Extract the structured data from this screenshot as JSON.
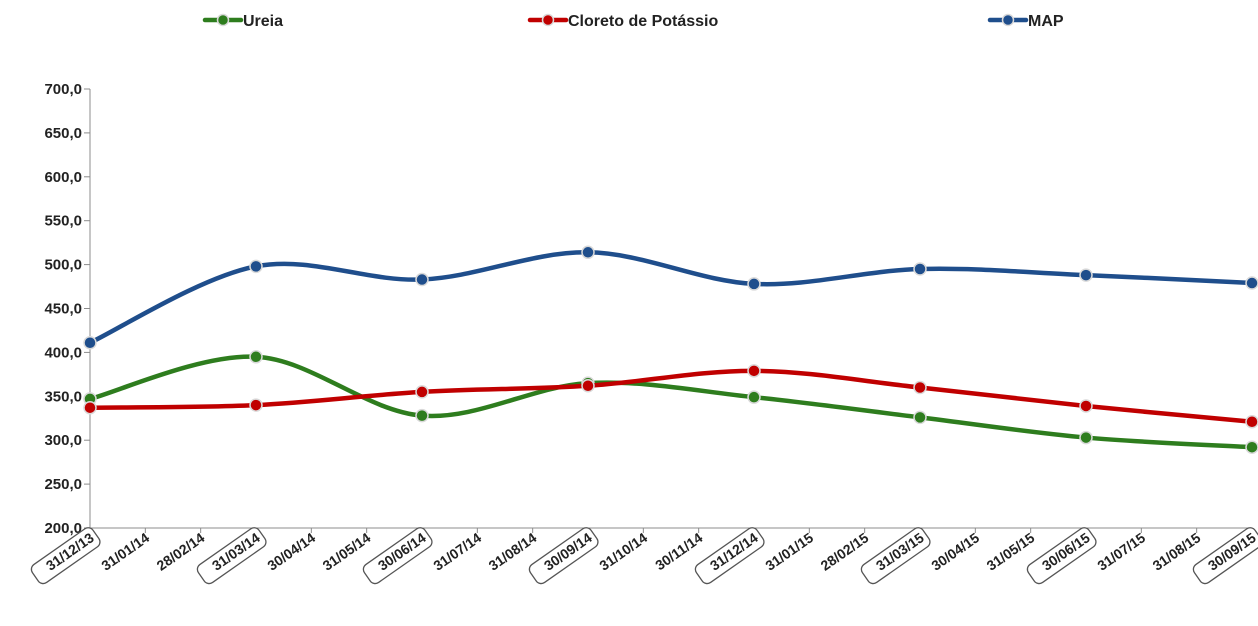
{
  "chart_data": {
    "type": "line",
    "categories": [
      "31/12/13",
      "31/01/14",
      "28/02/14",
      "31/03/14",
      "30/04/14",
      "31/05/14",
      "30/06/14",
      "31/07/14",
      "31/08/14",
      "30/09/14",
      "31/10/14",
      "30/11/14",
      "31/12/14",
      "31/01/15",
      "28/02/15",
      "31/03/15",
      "30/04/15",
      "31/05/15",
      "30/06/15",
      "31/07/15",
      "31/08/15",
      "30/09/15"
    ],
    "boxed_categories": [
      "31/12/13",
      "31/03/14",
      "30/06/14",
      "30/09/14",
      "31/12/14",
      "31/03/15",
      "30/06/15",
      "30/09/15"
    ],
    "series": [
      {
        "name": "Ureia",
        "color": "#2e7d1e",
        "x": [
          "31/12/13",
          "31/03/14",
          "30/06/14",
          "30/09/14",
          "31/12/14",
          "31/03/15",
          "30/06/15",
          "30/09/15"
        ],
        "values": [
          347,
          395,
          328,
          365,
          349,
          326,
          303,
          292
        ]
      },
      {
        "name": "Cloreto de Potássio",
        "color": "#c00000",
        "x": [
          "31/12/13",
          "31/03/14",
          "30/06/14",
          "30/09/14",
          "31/12/14",
          "31/03/15",
          "30/06/15",
          "30/09/15"
        ],
        "values": [
          337,
          340,
          355,
          362,
          379,
          360,
          339,
          321
        ]
      },
      {
        "name": "MAP",
        "color": "#1f4e8c",
        "x": [
          "31/12/13",
          "31/03/14",
          "30/06/14",
          "30/09/14",
          "31/12/14",
          "31/03/15",
          "30/06/15",
          "30/09/15"
        ],
        "values": [
          411,
          498,
          483,
          514,
          478,
          495,
          488,
          479
        ]
      }
    ],
    "y_ticks": [
      "200,0",
      "250,0",
      "300,0",
      "350,0",
      "400,0",
      "450,0",
      "500,0",
      "550,0",
      "600,0",
      "650,0",
      "700,0"
    ],
    "ylim": [
      200,
      700
    ],
    "grid": false,
    "legend_position": "top",
    "smooth": true
  }
}
